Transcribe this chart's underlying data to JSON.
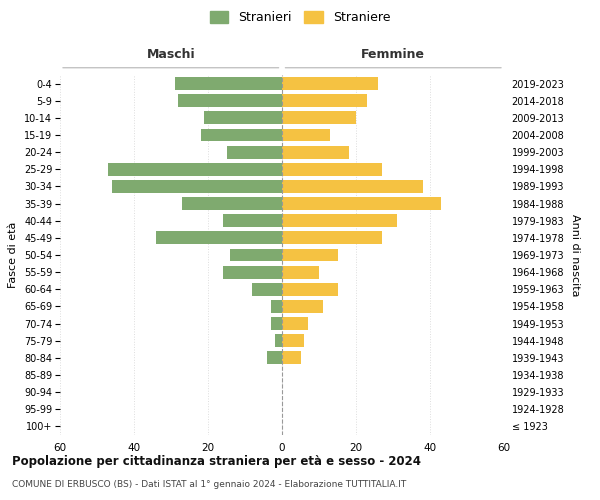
{
  "age_groups": [
    "100+",
    "95-99",
    "90-94",
    "85-89",
    "80-84",
    "75-79",
    "70-74",
    "65-69",
    "60-64",
    "55-59",
    "50-54",
    "45-49",
    "40-44",
    "35-39",
    "30-34",
    "25-29",
    "20-24",
    "15-19",
    "10-14",
    "5-9",
    "0-4"
  ],
  "birth_years": [
    "≤ 1923",
    "1924-1928",
    "1929-1933",
    "1934-1938",
    "1939-1943",
    "1944-1948",
    "1949-1953",
    "1954-1958",
    "1959-1963",
    "1964-1968",
    "1969-1973",
    "1974-1978",
    "1979-1983",
    "1984-1988",
    "1989-1993",
    "1994-1998",
    "1999-2003",
    "2004-2008",
    "2009-2013",
    "2014-2018",
    "2019-2023"
  ],
  "maschi": [
    0,
    0,
    0,
    0,
    4,
    2,
    3,
    3,
    8,
    16,
    14,
    34,
    16,
    27,
    46,
    47,
    15,
    22,
    21,
    28,
    29
  ],
  "femmine": [
    0,
    0,
    0,
    0,
    5,
    6,
    7,
    11,
    15,
    10,
    15,
    27,
    31,
    43,
    38,
    27,
    18,
    13,
    20,
    23,
    26
  ],
  "color_maschi": "#7faa6f",
  "color_femmine": "#f5c242",
  "title": "Popolazione per cittadinanza straniera per età e sesso - 2024",
  "subtitle": "COMUNE DI ERBUSCO (BS) - Dati ISTAT al 1° gennaio 2024 - Elaborazione TUTTITALIA.IT",
  "xlabel_left": "Maschi",
  "xlabel_right": "Femmine",
  "ylabel_left": "Fasce di età",
  "ylabel_right": "Anni di nascita",
  "legend_maschi": "Stranieri",
  "legend_femmine": "Straniere",
  "xlim": 60,
  "background_color": "#ffffff",
  "grid_color": "#dddddd"
}
